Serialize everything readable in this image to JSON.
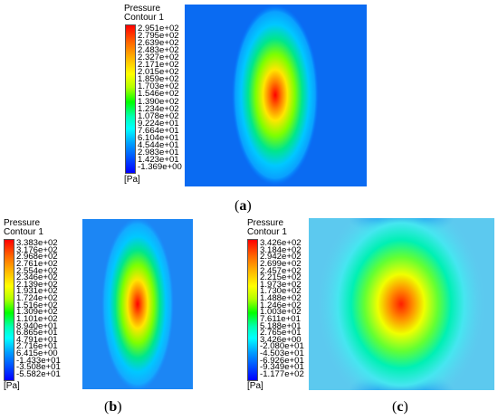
{
  "unit_label": "[Pa]",
  "panels": {
    "a": {
      "caption_open": "(",
      "caption_letter": "a",
      "caption_close": ")",
      "legend_title_1": "Pressure",
      "legend_title_2": "Contour 1",
      "ticks": [
        "2.951e+02",
        "2.795e+02",
        "2.639e+02",
        "2.483e+02",
        "2.327e+02",
        "2.171e+02",
        "2.015e+02",
        "1.859e+02",
        "1.703e+02",
        "1.546e+02",
        "1.390e+02",
        "1.234e+02",
        "1.078e+02",
        "9.224e+01",
        "7.664e+01",
        "6.104e+01",
        "4.544e+01",
        "2.983e+01",
        "1.423e+01",
        "-1.369e+00"
      ]
    },
    "b": {
      "caption_open": "(",
      "caption_letter": "b",
      "caption_close": ")",
      "legend_title_1": "Pressure",
      "legend_title_2": "Contour 1",
      "ticks": [
        "3.383e+02",
        "3.176e+02",
        "2.968e+02",
        "2.761e+02",
        "2.554e+02",
        "2.346e+02",
        "2.139e+02",
        "1.931e+02",
        "1.724e+02",
        "1.516e+02",
        "1.309e+02",
        "1.101e+02",
        "8.940e+01",
        "6.865e+01",
        "4.791e+01",
        "2.716e+01",
        "6.415e+00",
        "-1.433e+01",
        "-3.508e+01",
        "-5.582e+01"
      ]
    },
    "c": {
      "caption_open": "(",
      "caption_letter": "c",
      "caption_close": ")",
      "legend_title_1": "Pressure",
      "legend_title_2": "Contour 1",
      "ticks": [
        "3.426e+02",
        "3.184e+02",
        "2.942e+02",
        "2.699e+02",
        "2.457e+02",
        "2.215e+02",
        "1.973e+02",
        "1.730e+02",
        "1.488e+02",
        "1.246e+02",
        "1.003e+02",
        "7.611e+01",
        "5.188e+01",
        "2.765e+01",
        "3.426e+00",
        "-2.080e+01",
        "-4.503e+01",
        "-6.926e+01",
        "-9.349e+01",
        "-1.177e+02"
      ]
    }
  }
}
